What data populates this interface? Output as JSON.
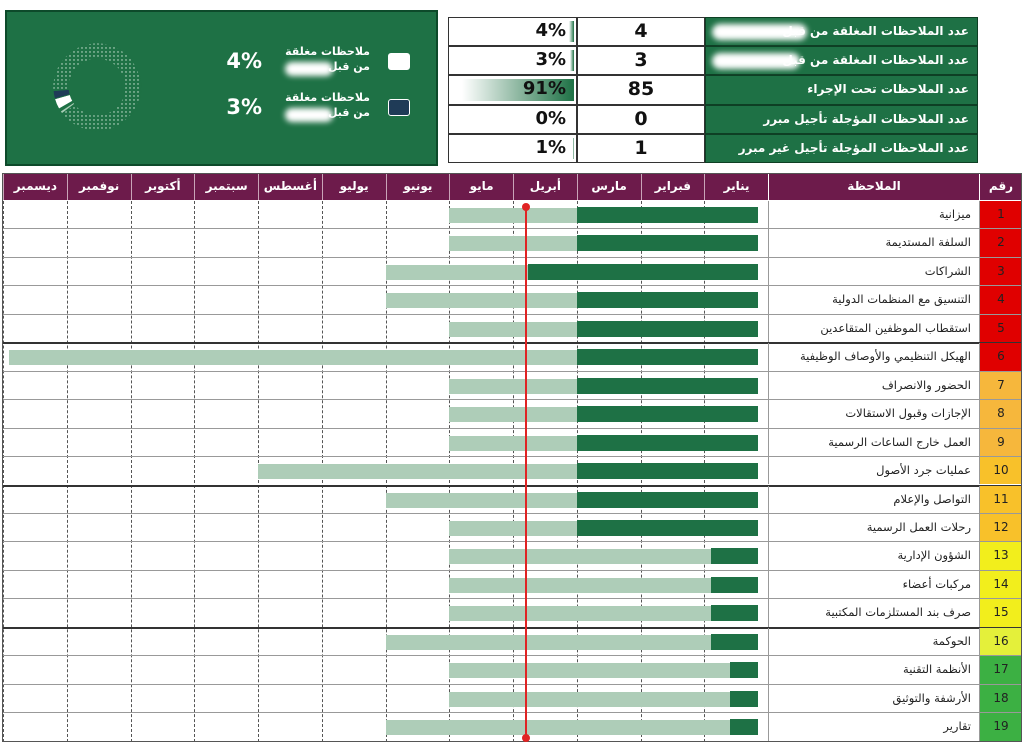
{
  "summary_chart": {
    "legend": [
      {
        "label": "ملاحظات مغلقة من قبل",
        "percent": "4%"
      },
      {
        "label": "ملاحظات مغلقة من قبل",
        "percent": "3%"
      }
    ],
    "slice_colors": [
      "#ffffff",
      "#1f3b57",
      "#1e7145",
      "#cccccc",
      "#a9cdb6"
    ]
  },
  "summary_table": {
    "rows": [
      {
        "label": "عدد الملاحظات المغلقة من قبل",
        "count": 4,
        "percent": "4%"
      },
      {
        "label": "عدد الملاحظات المغلقة من قبل",
        "count": 3,
        "percent": "3%"
      },
      {
        "label": "عدد الملاحظات تحت الإجراء",
        "count": 85,
        "percent": "91%"
      },
      {
        "label": "عدد الملاحظات المؤجلة تأجيل مبرر",
        "count": 0,
        "percent": "0%"
      },
      {
        "label": "عدد الملاحظات المؤجلة تأجيل غير مبرر",
        "count": 1,
        "percent": "1%"
      }
    ]
  },
  "timeline": {
    "headers": {
      "number": "رقم",
      "note": "الملاحظة"
    },
    "months": [
      "يناير",
      "فبراير",
      "مارس",
      "أبريل",
      "مايو",
      "يونيو",
      "يوليو",
      "أغسطس",
      "سبتمبر",
      "أكتوبر",
      "نوفمبر",
      "ديسمبر"
    ],
    "today": 3.8,
    "rows": [
      {
        "number": 1,
        "note": "ميزانية",
        "color": "#e00000",
        "plan": 5,
        "progress": 3
      },
      {
        "number": 2,
        "note": "السلفة المستديمة",
        "color": "#e00000",
        "plan": 5,
        "progress": 3
      },
      {
        "number": 3,
        "note": "الشراكات",
        "color": "#e00000",
        "plan": 6,
        "progress": 3.76
      },
      {
        "number": 4,
        "note": "التنسيق مع المنظمات الدولية",
        "color": "#e00000",
        "plan": 6,
        "progress": 3
      },
      {
        "number": 5,
        "note": "استقطاب الموظفين المتقاعدين",
        "color": "#e00000",
        "plan": 5,
        "progress": 3
      },
      {
        "number": 6,
        "note": "الهيكل التنظيمي والأوصاف الوظيفية",
        "color": "#e00000",
        "plan": 11.9,
        "progress": 3
      },
      {
        "number": 7,
        "note": "الحضور والانصراف",
        "color": "#f6b73c",
        "plan": 5,
        "progress": 3
      },
      {
        "number": 8,
        "note": "الإجازات وقبول الاستقالات",
        "color": "#f6b73c",
        "plan": 5,
        "progress": 3
      },
      {
        "number": 9,
        "note": "العمل خارج الساعات الرسمية",
        "color": "#f6b73c",
        "plan": 5,
        "progress": 3
      },
      {
        "number": 10,
        "note": "عمليات جرد الأصول",
        "color": "#f8c12a",
        "plan": 8,
        "progress": 3
      },
      {
        "number": 11,
        "note": "التواصل والإعلام",
        "color": "#f8c12a",
        "plan": 6,
        "progress": 3
      },
      {
        "number": 12,
        "note": "رحلات العمل الرسمية",
        "color": "#f8c12a",
        "plan": 5,
        "progress": 3
      },
      {
        "number": 13,
        "note": "الشؤون الإدارية",
        "color": "#f2ee1c",
        "plan": 5,
        "progress": 0.9
      },
      {
        "number": 14,
        "note": "مركبات أعضاء",
        "color": "#f2ee1c",
        "plan": 5,
        "progress": 0.9
      },
      {
        "number": 15,
        "note": "صرف بند المستلزمات المكتبية",
        "color": "#f2ee1c",
        "plan": 5,
        "progress": 0.9
      },
      {
        "number": 16,
        "note": "الحوكمة",
        "color": "#e4f03a",
        "plan": 6,
        "progress": 0.9
      },
      {
        "number": 17,
        "note": "الأنظمة التقنية",
        "color": "#3cb043",
        "plan": 5,
        "progress": 0.6
      },
      {
        "number": 18,
        "note": "الأرشفة والتوثيق",
        "color": "#3cb043",
        "plan": 5,
        "progress": 0.6
      },
      {
        "number": 19,
        "note": "تقارير",
        "color": "#3cb043",
        "plan": 6,
        "progress": 0.6
      }
    ]
  }
}
